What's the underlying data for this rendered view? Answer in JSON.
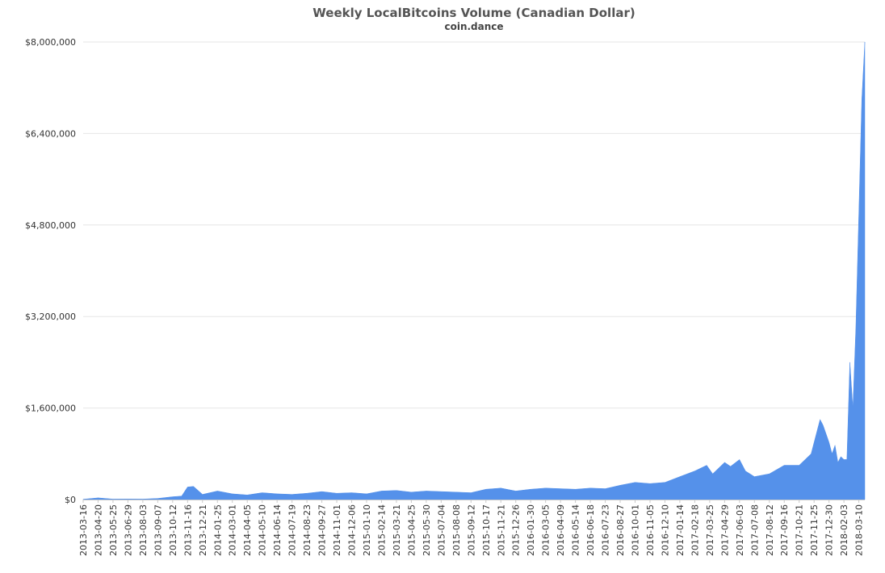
{
  "chart_data": {
    "type": "area",
    "title": "Weekly LocalBitcoins Volume (Canadian Dollar)",
    "subtitle": "coin.dance",
    "xlabel": "",
    "ylabel": "",
    "ylim": [
      0,
      8000000
    ],
    "grid": true,
    "legend": "none",
    "color": "#5591EA",
    "y_ticks": [
      "$0",
      "$1,600,000",
      "$3,200,000",
      "$4,800,000",
      "$6,400,000",
      "$8,000,000"
    ],
    "x_ticks": [
      "2013-03-16",
      "2013-04-20",
      "2013-05-25",
      "2013-06-29",
      "2013-08-03",
      "2013-09-07",
      "2013-10-12",
      "2013-11-16",
      "2013-12-21",
      "2014-01-25",
      "2014-03-01",
      "2014-04-05",
      "2014-05-10",
      "2014-06-14",
      "2014-07-19",
      "2014-08-23",
      "2014-09-27",
      "2014-11-01",
      "2014-12-06",
      "2015-01-10",
      "2015-02-14",
      "2015-03-21",
      "2015-04-25",
      "2015-05-30",
      "2015-07-04",
      "2015-08-08",
      "2015-09-12",
      "2015-10-17",
      "2015-11-21",
      "2015-12-26",
      "2016-01-30",
      "2016-03-05",
      "2016-04-09",
      "2016-05-14",
      "2016-06-18",
      "2016-07-23",
      "2016-08-27",
      "2016-10-01",
      "2016-11-05",
      "2016-12-10",
      "2017-01-14",
      "2017-02-18",
      "2017-03-25",
      "2017-04-29",
      "2017-06-03",
      "2017-07-08",
      "2017-08-12",
      "2017-09-16",
      "2017-10-21",
      "2017-11-25",
      "2017-12-30",
      "2018-02-03",
      "2018-03-10"
    ],
    "x": [
      "2013-03-16",
      "2013-04-20",
      "2013-05-25",
      "2013-06-29",
      "2013-08-03",
      "2013-09-07",
      "2013-10-12",
      "2013-11-02",
      "2013-11-16",
      "2013-11-30",
      "2013-12-21",
      "2014-01-25",
      "2014-03-01",
      "2014-04-05",
      "2014-05-10",
      "2014-06-14",
      "2014-07-19",
      "2014-08-23",
      "2014-09-27",
      "2014-11-01",
      "2014-12-06",
      "2015-01-10",
      "2015-02-14",
      "2015-03-21",
      "2015-04-25",
      "2015-05-30",
      "2015-07-04",
      "2015-08-08",
      "2015-09-12",
      "2015-10-17",
      "2015-11-21",
      "2015-12-26",
      "2016-01-30",
      "2016-03-05",
      "2016-04-09",
      "2016-05-14",
      "2016-06-18",
      "2016-07-23",
      "2016-08-27",
      "2016-10-01",
      "2016-11-05",
      "2016-12-10",
      "2017-01-14",
      "2017-02-18",
      "2017-03-18",
      "2017-04-01",
      "2017-04-29",
      "2017-05-13",
      "2017-06-03",
      "2017-06-17",
      "2017-07-08",
      "2017-08-12",
      "2017-09-16",
      "2017-10-21",
      "2017-11-04",
      "2017-11-18",
      "2017-11-25",
      "2017-12-09",
      "2017-12-16",
      "2017-12-30",
      "2018-01-06",
      "2018-01-13",
      "2018-01-20",
      "2018-01-27",
      "2018-02-03",
      "2018-02-10",
      "2018-02-17",
      "2018-02-24",
      "2018-03-03",
      "2018-03-10",
      "2018-03-17",
      "2018-03-24"
    ],
    "series": [
      {
        "values": [
          5000,
          30000,
          8000,
          10000,
          8000,
          20000,
          50000,
          60000,
          220000,
          230000,
          90000,
          150000,
          100000,
          80000,
          120000,
          100000,
          90000,
          110000,
          140000,
          110000,
          120000,
          100000,
          150000,
          160000,
          130000,
          150000,
          140000,
          130000,
          120000,
          180000,
          200000,
          150000,
          180000,
          200000,
          190000,
          180000,
          200000,
          190000,
          250000,
          300000,
          280000,
          300000,
          400000,
          500000,
          600000,
          450000,
          650000,
          580000,
          700000,
          500000,
          400000,
          450000,
          600000,
          600000,
          700000,
          800000,
          1000000,
          1400000,
          1300000,
          1000000,
          800000,
          950000,
          650000,
          750000,
          700000,
          700000,
          2400000,
          1600000,
          3000000,
          5000000,
          7000000,
          8000000
        ]
      }
    ]
  }
}
